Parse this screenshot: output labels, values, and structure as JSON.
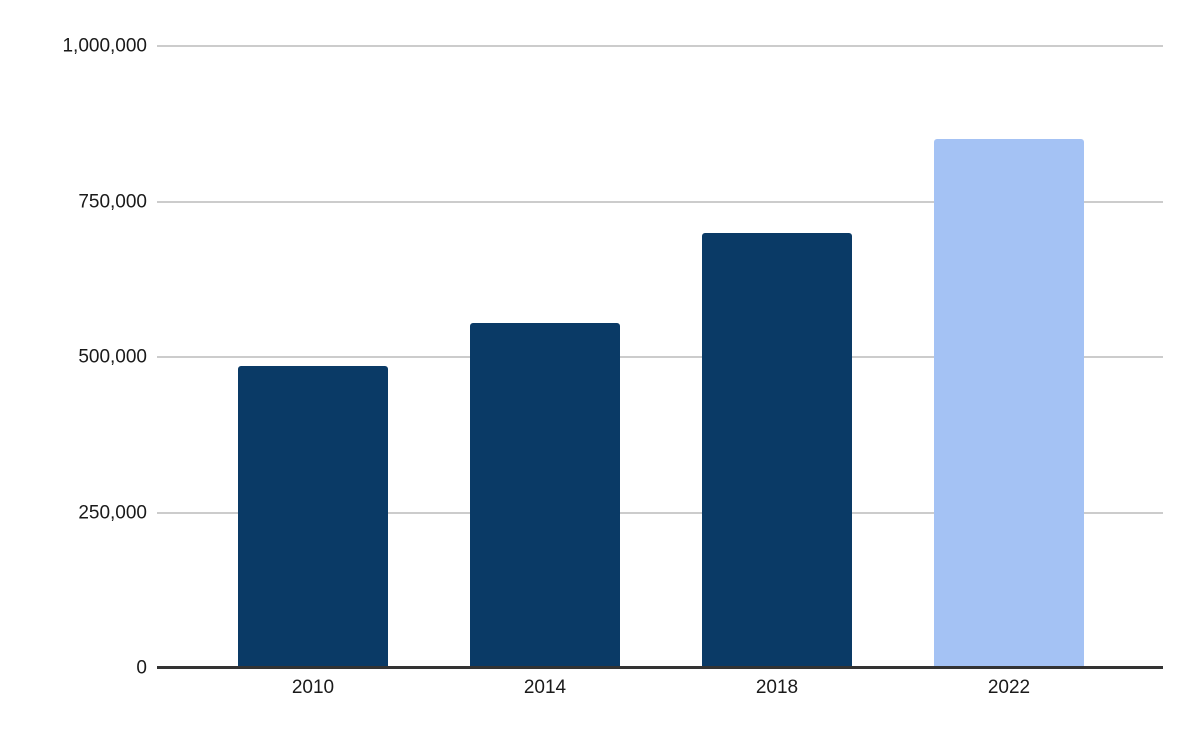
{
  "chart_data": {
    "type": "bar",
    "title": "",
    "xlabel": "",
    "ylabel": "",
    "categories": [
      "2010",
      "2014",
      "2018",
      "2022"
    ],
    "values": [
      485000,
      555000,
      700000,
      850000
    ],
    "bar_colors": [
      "#0a3a66",
      "#0a3a66",
      "#0a3a66",
      "#a4c2f4"
    ],
    "ylim": [
      0,
      1000000
    ],
    "yticks": [
      {
        "value": 0,
        "label": "0"
      },
      {
        "value": 250000,
        "label": "250,000"
      },
      {
        "value": 500000,
        "label": "500,000"
      },
      {
        "value": 750000,
        "label": "750,000"
      },
      {
        "value": 1000000,
        "label": "1,000,000"
      }
    ],
    "grid": true,
    "legend": "none",
    "colors": {
      "background": "#ffffff",
      "bar_default": "#0a3a66",
      "bar_highlight": "#a4c2f4",
      "gridline": "#cccccc",
      "axis_line": "#333333",
      "tick_label": "#1a1a1a"
    }
  }
}
